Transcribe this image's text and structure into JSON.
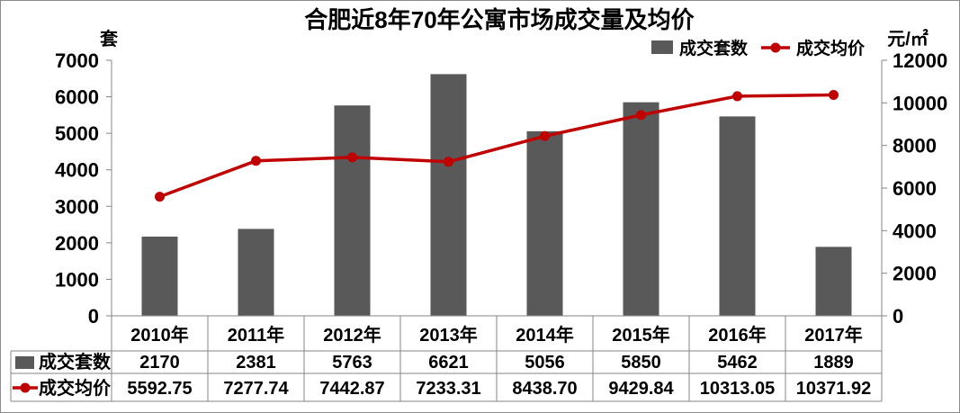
{
  "chart_data": {
    "type": "bar",
    "title": "合肥近8年70年公寓市场成交量及均价",
    "categories": [
      "2010年",
      "2011年",
      "2012年",
      "2013年",
      "2014年",
      "2015年",
      "2016年",
      "2017年"
    ],
    "series": [
      {
        "name": "成交套数",
        "type": "bar",
        "axis": "left",
        "color": "#595959",
        "values": [
          2170,
          2381,
          5763,
          6621,
          5056,
          5850,
          5462,
          1889
        ]
      },
      {
        "name": "成交均价",
        "type": "line",
        "axis": "right",
        "color": "#C00000",
        "marker": "circle",
        "values": [
          5592.75,
          7277.74,
          7442.87,
          7233.31,
          8438.7,
          9429.84,
          10313.05,
          10371.92
        ]
      }
    ],
    "y_left": {
      "label": "套",
      "ylim": [
        0,
        7000
      ],
      "ticks": [
        0,
        1000,
        2000,
        3000,
        4000,
        5000,
        6000,
        7000
      ]
    },
    "y_right": {
      "label": "元/㎡",
      "ylim": [
        0,
        12000
      ],
      "ticks": [
        0,
        2000,
        4000,
        6000,
        8000,
        10000,
        12000
      ]
    },
    "xlabel": "",
    "grid": false,
    "legend": "top-right",
    "data_table": true
  }
}
